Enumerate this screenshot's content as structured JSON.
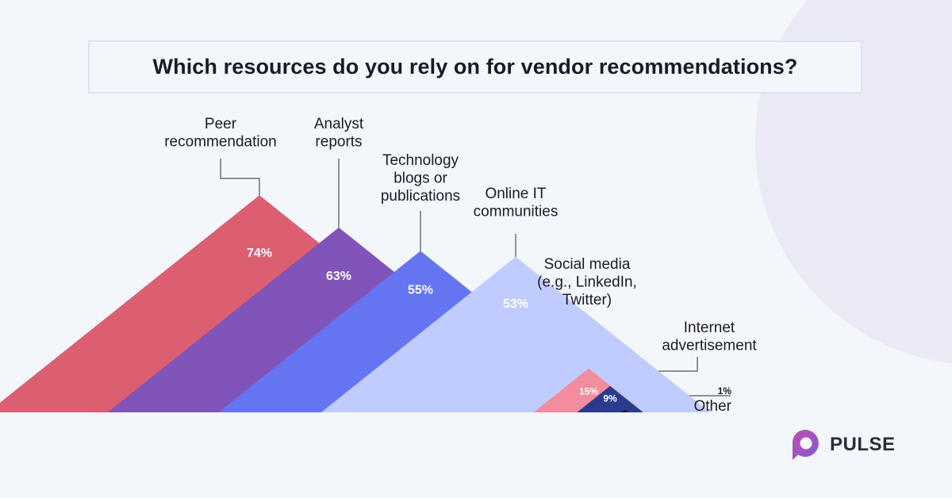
{
  "chart_data": {
    "type": "bar",
    "mark_shape": "triangle",
    "title": "Which resources do you rely on for vendor recommendations?",
    "unit": "%",
    "categories": [
      [
        "Peer",
        "recommendation"
      ],
      [
        "Analyst",
        "reports"
      ],
      [
        "Technology",
        "blogs or",
        "publications"
      ],
      [
        "Online IT",
        "communities"
      ],
      [
        "Social media",
        "(e.g., LinkedIn,",
        "Twitter)"
      ],
      [
        "Internet",
        "advertisement"
      ],
      [
        "Other"
      ]
    ],
    "values": [
      74,
      63,
      55,
      53,
      15,
      9,
      1
    ],
    "value_labels": [
      "74%",
      "63%",
      "55%",
      "53%",
      "15%",
      "9%",
      "1%"
    ],
    "colors": [
      "#db5f71",
      "#8154ba",
      "#6575f2",
      "#bfccfd",
      "#f28d9d",
      "#2a3b8f",
      "#1b1b27"
    ]
  },
  "brand": {
    "name": "PULSE",
    "colors": [
      "#c04fb0",
      "#7d5bd4"
    ]
  }
}
